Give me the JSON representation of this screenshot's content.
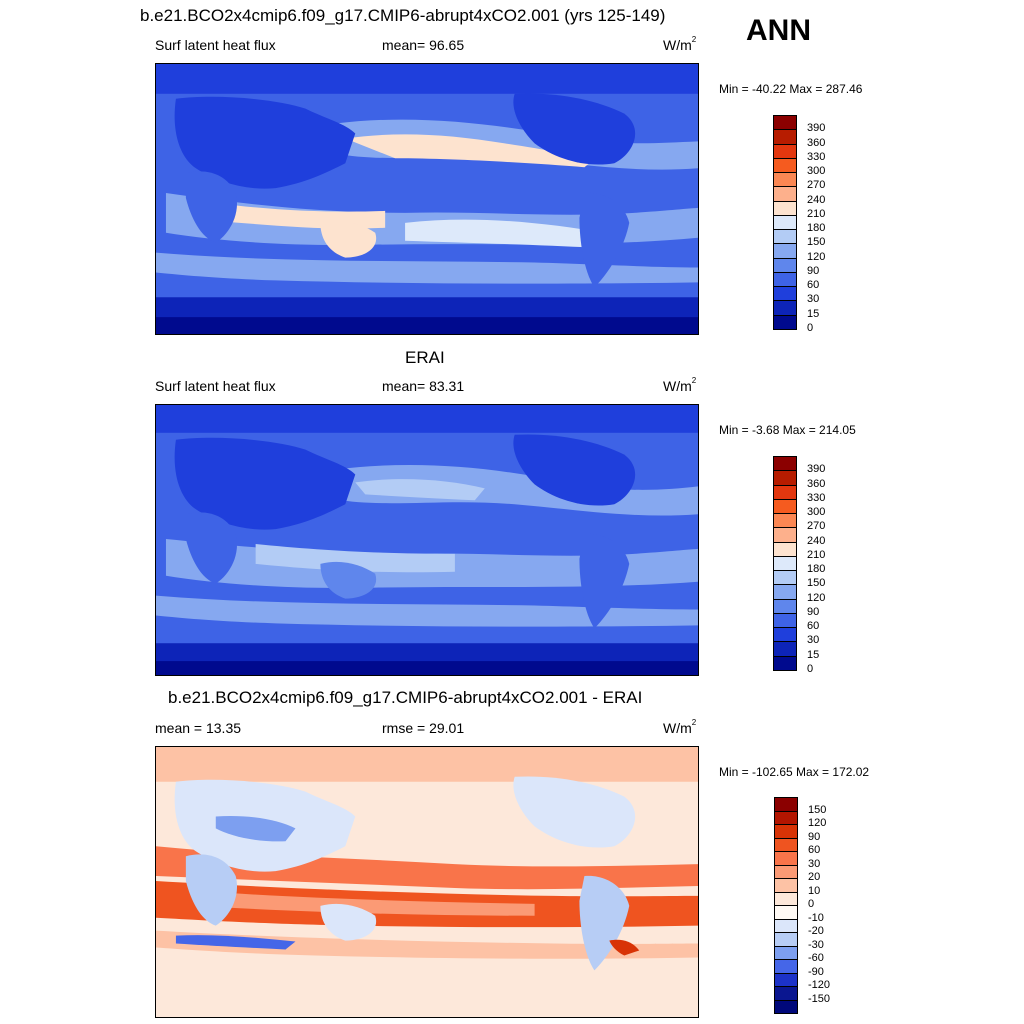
{
  "season_label": "ANN",
  "panels": [
    {
      "title": "b.e21.BCO2x4cmip6.f09_g17.CMIP6-abrupt4xCO2.001 (yrs 125-149)",
      "left_label": "Surf latent heat flux",
      "center_label": "mean=  96.65",
      "units_base": "W/m",
      "units_exp": "2",
      "minmax": "Min = -40.22 Max = 287.46",
      "legend_labels": [
        "390",
        "360",
        "330",
        "300",
        "270",
        "240",
        "210",
        "180",
        "150",
        "120",
        "90",
        "60",
        "30",
        "15",
        "0"
      ],
      "legend_colors": [
        "#8b0000",
        "#b71c00",
        "#e3370f",
        "#f55b1f",
        "#fb8753",
        "#fdb08c",
        "#fde3cf",
        "#dde9fa",
        "#b3ccf5",
        "#86a8f0",
        "#5f86ec",
        "#3e63e6",
        "#1f3fdc",
        "#0d24b8",
        "#000a8e"
      ]
    },
    {
      "title": "ERAI",
      "left_label": "Surf latent heat flux",
      "center_label": "mean=  83.31",
      "units_base": "W/m",
      "units_exp": "2",
      "minmax": "Min =  -3.68 Max = 214.05",
      "legend_labels": [
        "390",
        "360",
        "330",
        "300",
        "270",
        "240",
        "210",
        "180",
        "150",
        "120",
        "90",
        "60",
        "30",
        "15",
        "0"
      ],
      "legend_colors": [
        "#8b0000",
        "#b71c00",
        "#e3370f",
        "#f55b1f",
        "#fb8753",
        "#fdb08c",
        "#fde3cf",
        "#dde9fa",
        "#b3ccf5",
        "#86a8f0",
        "#5f86ec",
        "#3e63e6",
        "#1f3fdc",
        "#0d24b8",
        "#000a8e"
      ]
    },
    {
      "title": "b.e21.BCO2x4cmip6.f09_g17.CMIP6-abrupt4xCO2.001 - ERAI",
      "left_label": "mean =  13.35",
      "center_label": "rmse =  29.01",
      "units_base": "W/m",
      "units_exp": "2",
      "minmax": "Min = -102.65 Max = 172.02",
      "legend_labels": [
        "150",
        "120",
        "90",
        "60",
        "30",
        "20",
        "10",
        "0",
        "-10",
        "-20",
        "-30",
        "-60",
        "-90",
        "-120",
        "-150"
      ],
      "legend_colors": [
        "#8b0000",
        "#b31500",
        "#d83306",
        "#ef5420",
        "#f9744a",
        "#fb9a75",
        "#fdc2a5",
        "#fde8da",
        "#fffaf5",
        "#dbe6fa",
        "#b7cdf5",
        "#7d9ff0",
        "#4566e8",
        "#1c32c8",
        "#0a1690",
        "#00087a"
      ]
    }
  ]
}
